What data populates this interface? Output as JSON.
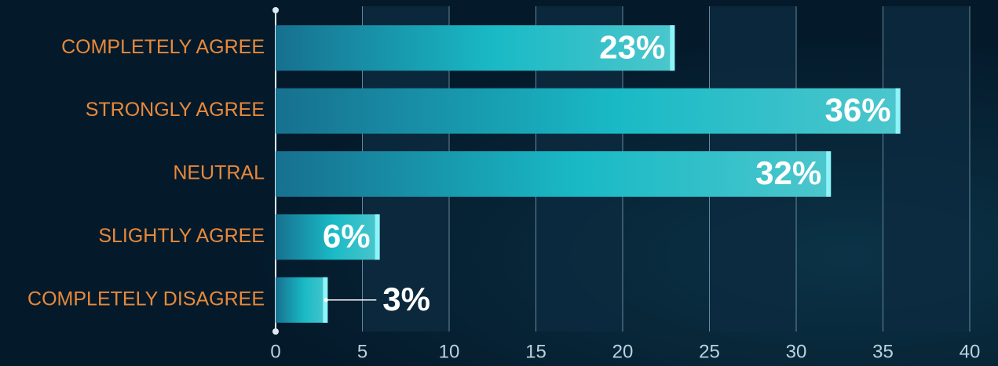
{
  "chart_data": {
    "type": "bar",
    "orientation": "horizontal",
    "categories": [
      "COMPLETELY AGREE",
      "STRONGLY AGREE",
      "NEUTRAL",
      "SLIGHTLY AGREE",
      "COMPLETELY DISAGREE"
    ],
    "values": [
      23,
      36,
      32,
      6,
      3
    ],
    "value_labels": [
      "23%",
      "36%",
      "32%",
      "6%",
      "3%"
    ],
    "color": "#1bbfc8",
    "xlim": [
      0,
      40
    ],
    "xticks": [
      0,
      5,
      10,
      15,
      20,
      25,
      30,
      35,
      40
    ],
    "grid": true
  }
}
